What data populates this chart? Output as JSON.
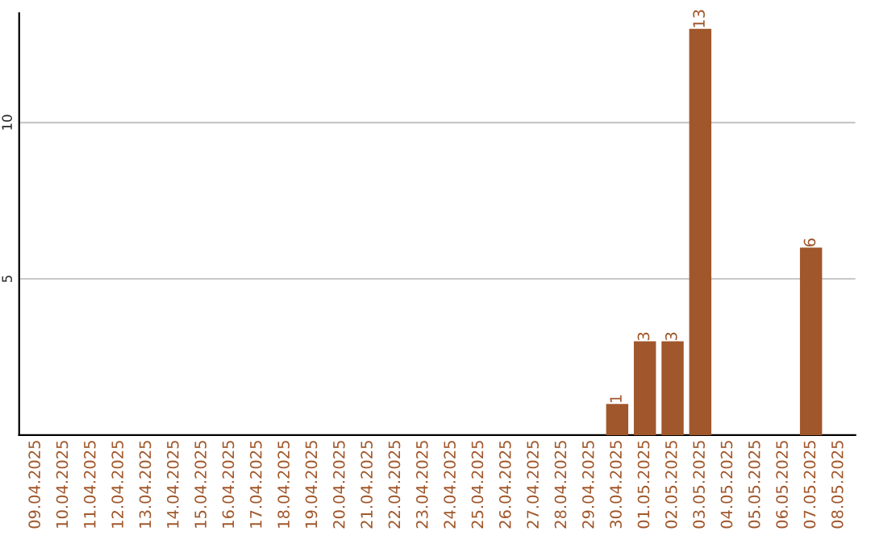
{
  "chart_data": {
    "type": "bar",
    "categories": [
      "09.04.2025",
      "10.04.2025",
      "11.04.2025",
      "12.04.2025",
      "13.04.2025",
      "14.04.2025",
      "15.04.2025",
      "16.04.2025",
      "17.04.2025",
      "18.04.2025",
      "19.04.2025",
      "20.04.2025",
      "21.04.2025",
      "22.04.2025",
      "23.04.2025",
      "24.04.2025",
      "25.04.2025",
      "26.04.2025",
      "27.04.2025",
      "28.04.2025",
      "29.04.2025",
      "30.04.2025",
      "01.05.2025",
      "02.05.2025",
      "03.05.2025",
      "04.05.2025",
      "05.05.2025",
      "06.05.2025",
      "07.05.2025",
      "08.05.2025"
    ],
    "values": [
      0,
      0,
      0,
      0,
      0,
      0,
      0,
      0,
      0,
      0,
      0,
      0,
      0,
      0,
      0,
      0,
      0,
      0,
      0,
      0,
      0,
      1,
      3,
      3,
      13,
      0,
      0,
      0,
      6,
      0
    ],
    "value_labels": [
      null,
      null,
      null,
      null,
      null,
      null,
      null,
      null,
      null,
      null,
      null,
      null,
      null,
      null,
      null,
      null,
      null,
      null,
      null,
      null,
      null,
      "1",
      "3",
      "3",
      "13",
      null,
      null,
      null,
      "6",
      null
    ],
    "color": "#a0572b",
    "ylim": [
      0,
      13.5
    ],
    "yticks": [
      5,
      10
    ],
    "grid": "y"
  }
}
